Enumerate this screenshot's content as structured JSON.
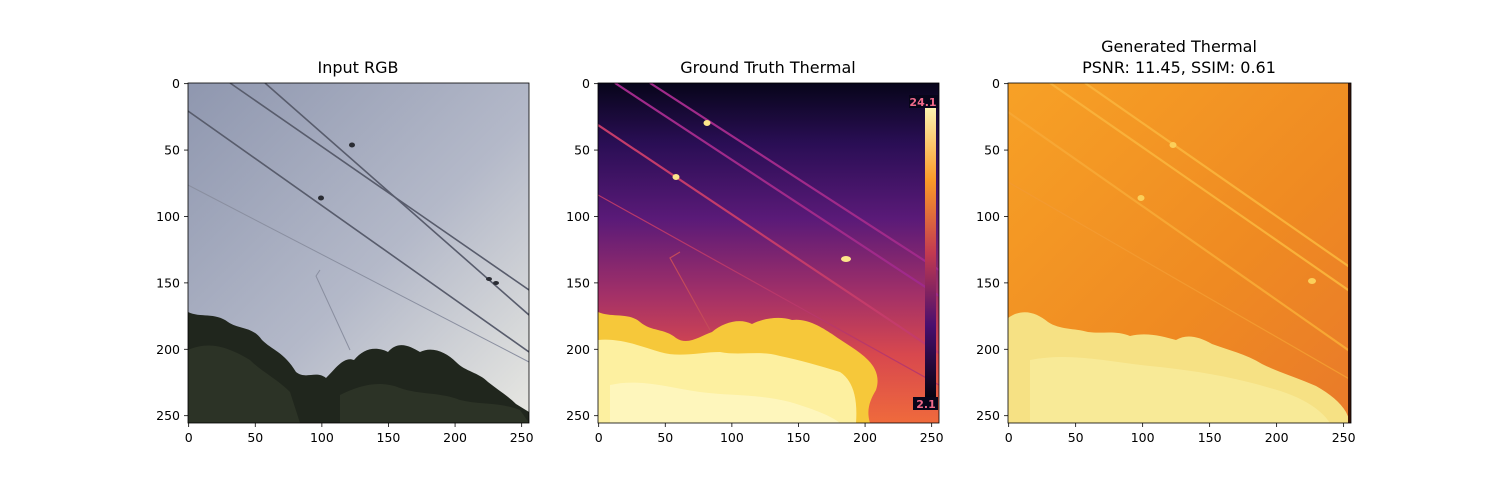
{
  "chart_data": [
    {
      "type": "heatmap",
      "title": "Input RGB",
      "xlim": [
        0,
        256
      ],
      "ylim": [
        256,
        0
      ],
      "xticks": [
        "0",
        "50",
        "100",
        "150",
        "200",
        "250"
      ],
      "yticks": [
        "0",
        "50",
        "100",
        "150",
        "200",
        "250"
      ]
    },
    {
      "type": "heatmap",
      "title": "Ground Truth Thermal",
      "xlim": [
        0,
        256
      ],
      "ylim": [
        256,
        0
      ],
      "xticks": [
        "0",
        "50",
        "100",
        "150",
        "200",
        "250"
      ],
      "yticks": [
        "0",
        "50",
        "100",
        "150",
        "200",
        "250"
      ],
      "colorbar": {
        "max_label": "24.1",
        "min_label": "2.1"
      }
    },
    {
      "type": "heatmap",
      "title": "Generated Thermal",
      "subtitle": "PSNR: 11.45, SSIM: 0.61",
      "xlim": [
        0,
        256
      ],
      "ylim": [
        256,
        0
      ],
      "xticks": [
        "0",
        "50",
        "100",
        "150",
        "200",
        "250"
      ],
      "yticks": [
        "0",
        "50",
        "100",
        "150",
        "200",
        "250"
      ]
    }
  ],
  "colors": {
    "sky_top": "#939ab2",
    "sky_bottom": "#e4e6e4",
    "foliage": "#23281f",
    "thermal_dark": "#0b0722",
    "thermal_mid": "#a8336a",
    "thermal_hot": "#fde79a",
    "gen_orange": "#f08a1e",
    "gen_light": "#f5e58a"
  }
}
